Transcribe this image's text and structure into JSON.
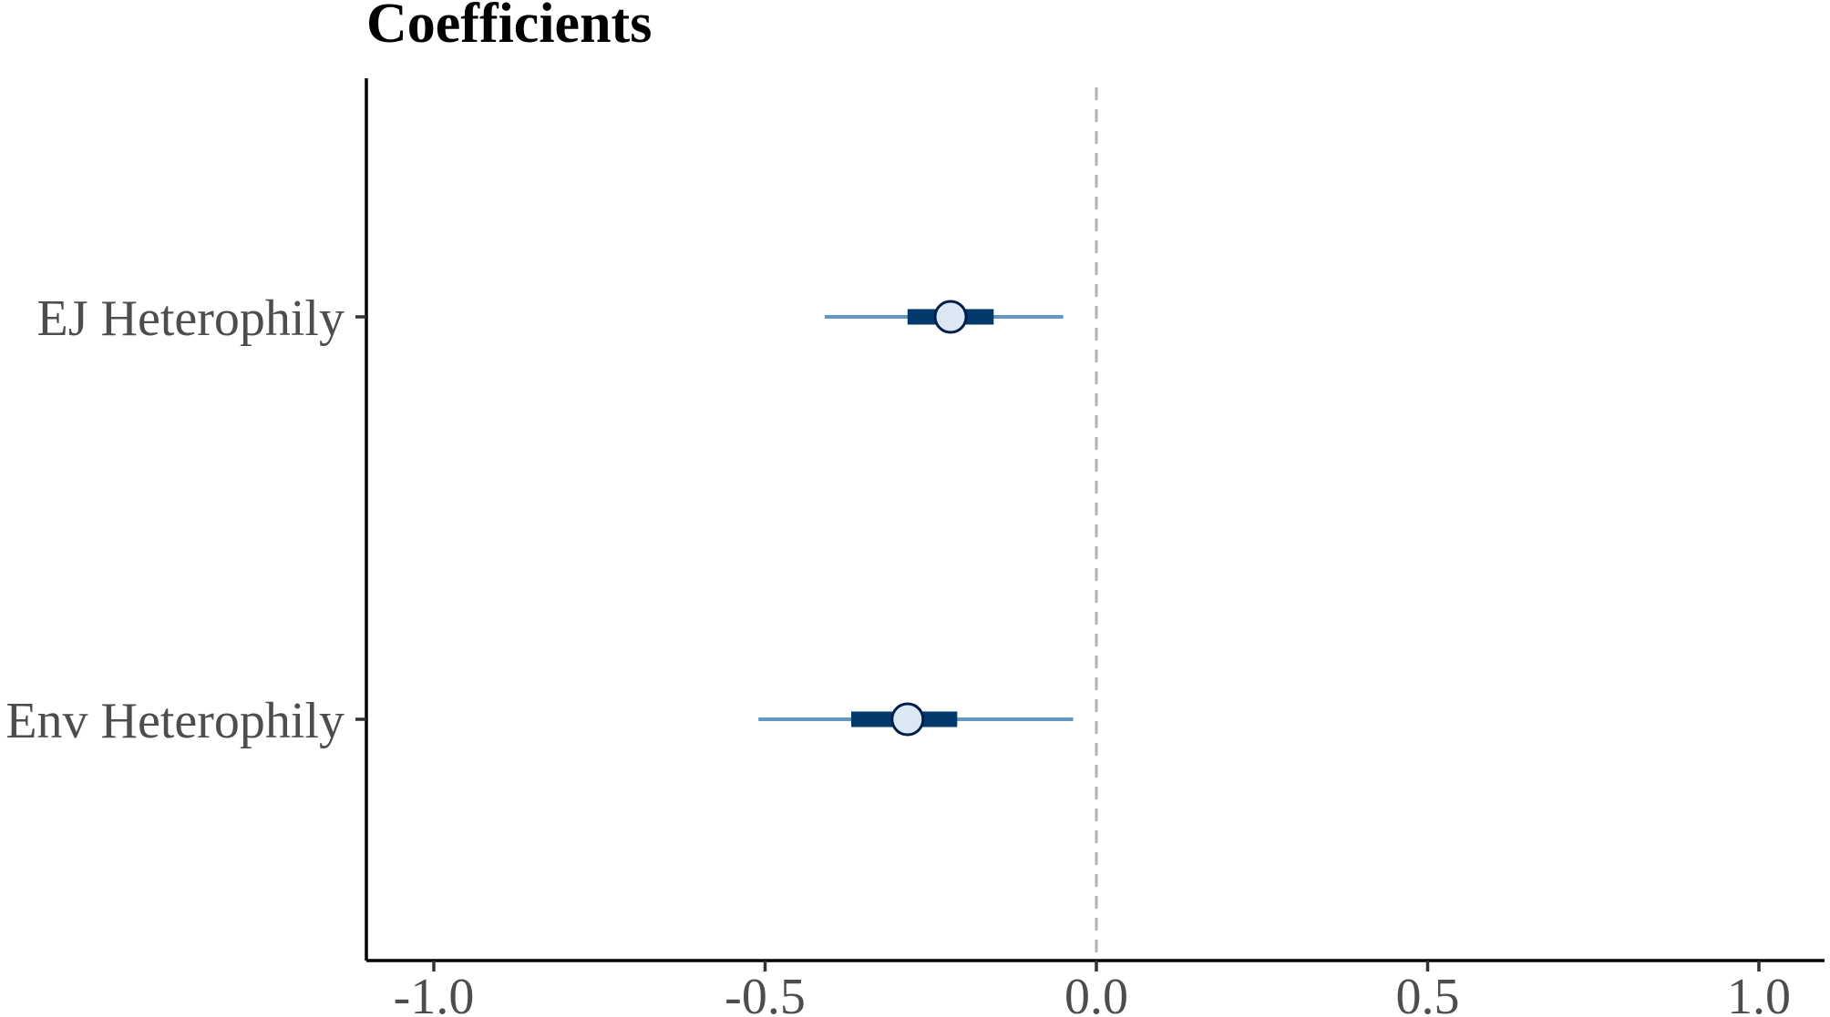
{
  "chart_data": {
    "type": "coefficient-plot",
    "title": "Coefficients",
    "xlabel": "",
    "ylabel": "",
    "xlim": [
      -1.1,
      1.1
    ],
    "x_ticks": [
      -1.0,
      -0.5,
      0.0,
      0.5,
      1.0
    ],
    "x_tick_labels": [
      "-1.0",
      "-0.5",
      "0.0",
      "0.5",
      "1.0"
    ],
    "reference_line": 0.0,
    "grid": false,
    "legend": "none",
    "terms": [
      {
        "label": "EJ Heterophily",
        "estimate": -0.22,
        "inner_interval": [
          -0.285,
          -0.155
        ],
        "outer_interval": [
          -0.41,
          -0.05
        ]
      },
      {
        "label": "Env Heterophily",
        "estimate": -0.285,
        "inner_interval": [
          -0.37,
          -0.21
        ],
        "outer_interval": [
          -0.51,
          -0.035
        ]
      }
    ],
    "colors": {
      "outer_interval": "#6497bf",
      "inner_interval": "#03396c",
      "point_fill": "#dbe7f3",
      "point_stroke": "#011f4b",
      "reference_line": "#b3b3b3"
    }
  }
}
